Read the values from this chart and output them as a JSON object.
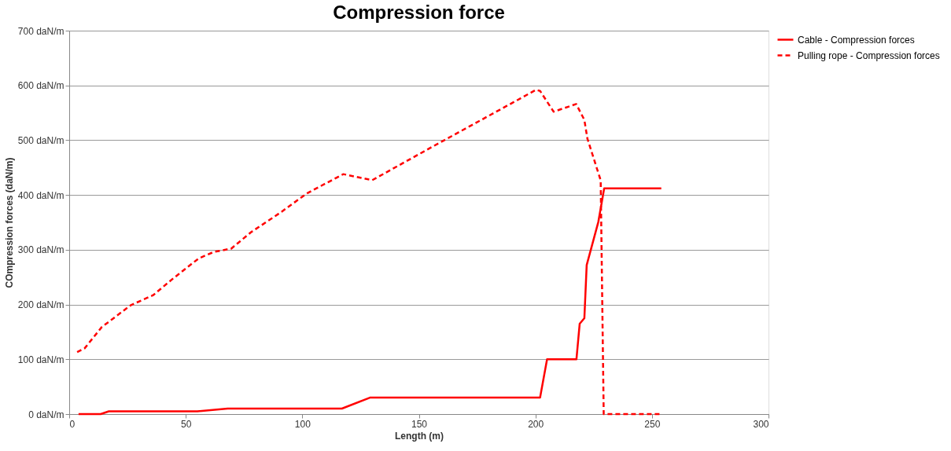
{
  "chart_data": {
    "type": "line",
    "title": "Compression force",
    "xlabel": "Length (m)",
    "ylabel": "COmpression forces (daN/m)",
    "xlim": [
      0,
      300
    ],
    "xticks": [
      0,
      50,
      100,
      150,
      200,
      250,
      300
    ],
    "ylim": [
      0,
      700
    ],
    "yticks": [
      {
        "value": 0,
        "label": "0 daN/m"
      },
      {
        "value": 100,
        "label": "100 daN/m"
      },
      {
        "value": 200,
        "label": "200 daN/m"
      },
      {
        "value": 300,
        "label": "300 daN/m"
      },
      {
        "value": 400,
        "label": "400 daN/m"
      },
      {
        "value": 500,
        "label": "500 daN/m"
      },
      {
        "value": 600,
        "label": "600 daN/m"
      },
      {
        "value": 700,
        "label": "700 daN/m"
      }
    ],
    "grid": "y",
    "legend": "right",
    "marker": "none",
    "series": [
      {
        "name": "Cable - Compression forces",
        "color": "#ff0000",
        "line_style": "solid",
        "x": [
          4,
          13.5,
          17,
          55,
          68,
          117,
          129,
          202,
          205,
          217.6,
          219,
          221,
          222,
          227,
          229.5,
          254
        ],
        "values": [
          0,
          0,
          5,
          5,
          10,
          10,
          30,
          30,
          100,
          100,
          165,
          175,
          272,
          351,
          412,
          412
        ]
      },
      {
        "name": "Pulling rope - Compression forces",
        "color": "#ff0000",
        "line_style": "dashed",
        "x": [
          3.4,
          6.6,
          14,
          26.5,
          36,
          44.7,
          55.5,
          62,
          69.5,
          78,
          91,
          102,
          117.6,
          130,
          154.5,
          200.3,
          202,
          207.8,
          217.5,
          221,
          222.3,
          227,
          228,
          229.3,
          254
        ],
        "values": [
          113,
          120,
          159,
          199,
          217,
          248,
          284,
          296,
          302,
          332,
          369,
          403,
          438,
          427,
          485,
          592,
          590,
          552,
          566,
          537,
          503,
          440,
          427,
          0,
          0
        ]
      }
    ]
  }
}
